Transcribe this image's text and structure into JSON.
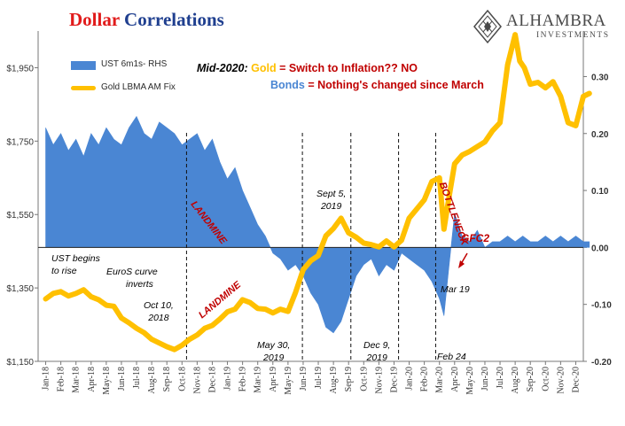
{
  "title": {
    "word1": "Dollar",
    "word2": "Correlations"
  },
  "brand": {
    "name": "ALHAMBRA",
    "sub": "INVESTMENTS"
  },
  "legend": [
    {
      "label": "UST 6m1s- RHS",
      "color": "#4a86d3"
    },
    {
      "label": "Gold LBMA AM Fix",
      "color": "#ffc000"
    }
  ],
  "header_notes": {
    "line1_prefix": "Mid-2020: ",
    "line1_gold": "Gold",
    "line1_rest": " = Switch to Inflation?? NO",
    "line2_bonds": "Bonds",
    "line2_rest": " = Nothing's changed since March"
  },
  "annotations": {
    "landmine_1": "LANDMINE",
    "landmine_2": "LANDMINE",
    "bottleneck": "BOTTLENECK",
    "gfc2": "GFC2",
    "ust_begins_line1": "UST begins",
    "ust_begins_line2": "to rise",
    "euros_line1": "EuroS curve",
    "euros_line2": "inverts",
    "oct10_line1": "Oct 10,",
    "oct10_line2": "2018",
    "may30_line1": "May 30,",
    "may30_line2": "2019",
    "sept5_line1": "Sept 5,",
    "sept5_line2": "2019",
    "dec9_line1": "Dec 9,",
    "dec9_line2": "2019",
    "feb24": "Feb 24",
    "mar19": "Mar 19"
  },
  "colors": {
    "gold": "#ffc000",
    "bonds": "#4a86d3",
    "title_red": "#e11b1b",
    "title_blue": "#1f3f8f",
    "note_blue": "#4a86d3",
    "note_red": "#c00000",
    "note_gold": "#ffc000"
  },
  "chart_data": {
    "type": "line",
    "x_tick_labels": [
      "Jan-18",
      "Feb-18",
      "Mar-18",
      "Apr-18",
      "May-18",
      "Jun-18",
      "Jul-18",
      "Aug-18",
      "Sep-18",
      "Oct-18",
      "Nov-18",
      "Dec-18",
      "Jan-19",
      "Feb-19",
      "Mar-19",
      "Apr-19",
      "May-19",
      "Jun-19",
      "Jul-19",
      "Aug-19",
      "Sep-19",
      "Oct-19",
      "Nov-19",
      "Dec-19",
      "Jan-20",
      "Feb-20",
      "Mar-20",
      "Apr-20",
      "May-20",
      "Jun-20",
      "Jul-20",
      "Aug-20",
      "Sep-20",
      "Oct-20",
      "Nov-20",
      "Dec-20"
    ],
    "y_left": {
      "label": "",
      "ylim": [
        1150,
        2050
      ],
      "ticks": [
        1150,
        1350,
        1550,
        1750,
        1950
      ],
      "tick_labels": [
        "$1,150",
        "$1,350",
        "$1,550",
        "$1,750",
        "$1,950"
      ]
    },
    "y_right": {
      "label": "",
      "ylim": [
        -0.2,
        0.38
      ],
      "ticks": [
        -0.2,
        -0.1,
        0.0,
        0.1,
        0.2,
        0.3
      ],
      "tick_labels": [
        "-0.20",
        "-0.10",
        "0.00",
        "0.10",
        "0.20",
        "0.30"
      ]
    },
    "series": [
      {
        "name": "Gold LBMA AM Fix",
        "axis": "left",
        "style": "line",
        "x": [
          0,
          0.5,
          1,
          1.5,
          2,
          2.5,
          3,
          3.5,
          4,
          4.5,
          5,
          5.5,
          6,
          6.5,
          7,
          7.5,
          8,
          8.5,
          9,
          9.5,
          10,
          10.5,
          11,
          11.5,
          12,
          12.5,
          13,
          13.5,
          14,
          14.5,
          15,
          15.5,
          16,
          16.5,
          17,
          17.5,
          18,
          18.5,
          19,
          19.5,
          20,
          20.5,
          21,
          21.5,
          22,
          22.5,
          23,
          23.5,
          24,
          24.5,
          25,
          25.5,
          26,
          26.3,
          26.6,
          27,
          27.5,
          28,
          28.5,
          29,
          29.5,
          30,
          30.5,
          31,
          31.3,
          31.6,
          32,
          32.5,
          33,
          33.5,
          34,
          34.5,
          35,
          35.5,
          35.9
        ],
        "y": [
          1320,
          1335,
          1340,
          1328,
          1335,
          1345,
          1326,
          1318,
          1303,
          1300,
          1268,
          1255,
          1240,
          1228,
          1210,
          1200,
          1190,
          1182,
          1194,
          1210,
          1222,
          1240,
          1248,
          1265,
          1285,
          1292,
          1318,
          1310,
          1294,
          1292,
          1282,
          1292,
          1286,
          1338,
          1400,
          1424,
          1438,
          1492,
          1512,
          1540,
          1500,
          1488,
          1472,
          1468,
          1462,
          1478,
          1462,
          1480,
          1540,
          1565,
          1590,
          1640,
          1650,
          1510,
          1590,
          1688,
          1712,
          1722,
          1735,
          1748,
          1778,
          1800,
          1958,
          2040,
          1968,
          1950,
          1905,
          1910,
          1895,
          1912,
          1872,
          1800,
          1792,
          1872,
          1880
        ]
      },
      {
        "name": "UST 6m1s- RHS",
        "axis": "right",
        "style": "area",
        "x": [
          0,
          0.5,
          1,
          1.5,
          2,
          2.5,
          3,
          3.5,
          4,
          4.5,
          5,
          5.5,
          6,
          6.5,
          7,
          7.5,
          8,
          8.5,
          9,
          9.5,
          10,
          10.5,
          11,
          11.5,
          12,
          12.5,
          13,
          13.5,
          14,
          14.5,
          15,
          15.5,
          16,
          16.5,
          17,
          17.5,
          18,
          18.5,
          19,
          19.5,
          20,
          20.5,
          21,
          21.5,
          22,
          22.5,
          23,
          23.5,
          24,
          24.5,
          25,
          25.5,
          26,
          26.3,
          26.6,
          27,
          27.5,
          28,
          28.5,
          29,
          29.5,
          30,
          30.5,
          31,
          31.5,
          32,
          32.5,
          33,
          33.5,
          34,
          34.5,
          35,
          35.5,
          35.9
        ],
        "y": [
          0.21,
          0.18,
          0.2,
          0.17,
          0.19,
          0.16,
          0.2,
          0.18,
          0.21,
          0.19,
          0.18,
          0.21,
          0.23,
          0.2,
          0.19,
          0.22,
          0.21,
          0.2,
          0.18,
          0.19,
          0.2,
          0.17,
          0.19,
          0.15,
          0.12,
          0.14,
          0.1,
          0.07,
          0.04,
          0.02,
          -0.01,
          -0.02,
          -0.04,
          -0.03,
          -0.05,
          -0.08,
          -0.1,
          -0.14,
          -0.15,
          -0.13,
          -0.09,
          -0.05,
          -0.03,
          -0.02,
          -0.05,
          -0.03,
          -0.04,
          -0.01,
          -0.02,
          -0.03,
          -0.04,
          -0.06,
          -0.09,
          -0.12,
          -0.04,
          0.06,
          0.02,
          0.01,
          0.03,
          0.0,
          0.01,
          0.01,
          0.02,
          0.01,
          0.02,
          0.01,
          0.01,
          0.02,
          0.01,
          0.02,
          0.01,
          0.02,
          0.01,
          0.01
        ]
      }
    ],
    "event_lines": [
      {
        "label": "Oct 10, 2018",
        "x": 9.3
      },
      {
        "label": "May 30, 2019",
        "x": 16.95
      },
      {
        "label": "Sept 5, 2019",
        "x": 20.15
      },
      {
        "label": "Dec 9, 2019",
        "x": 23.3
      },
      {
        "label": "Feb 24",
        "x": 25.75
      }
    ],
    "grid": false,
    "legend_position": "top-left"
  }
}
